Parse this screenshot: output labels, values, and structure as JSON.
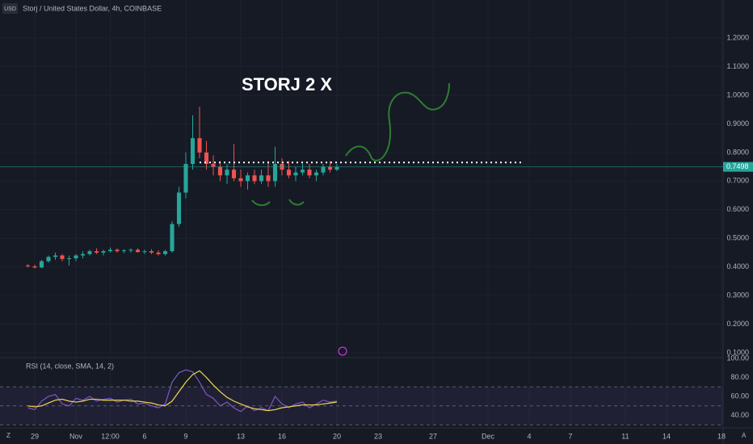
{
  "chart_data": [
    {
      "type": "candlestick",
      "title": "Storj / United States Dollar, 4h, COINBASE",
      "currency": "USD",
      "annotation": "STORJ 2 X",
      "x": [
        -0.5,
        0,
        0.5,
        1,
        1.5,
        2,
        2.5,
        3,
        3.5,
        4,
        4.5,
        5,
        5.5,
        6,
        6.5,
        7,
        7.5,
        8,
        8.5,
        9,
        9.5,
        10,
        10.5,
        11,
        11.5,
        12,
        12.5,
        13,
        13.5,
        14,
        14.5,
        15,
        15.5,
        16,
        16.5,
        17,
        17.5,
        18,
        18.5,
        19,
        19.5,
        20,
        20.5,
        21,
        21.5,
        22
      ],
      "open": [
        0.405,
        0.402,
        0.398,
        0.42,
        0.435,
        0.44,
        0.428,
        0.43,
        0.44,
        0.445,
        0.455,
        0.45,
        0.455,
        0.46,
        0.455,
        0.458,
        0.46,
        0.452,
        0.455,
        0.45,
        0.445,
        0.455,
        0.55,
        0.66,
        0.76,
        0.85,
        0.8,
        0.76,
        0.75,
        0.72,
        0.74,
        0.71,
        0.7,
        0.72,
        0.7,
        0.72,
        0.7,
        0.76,
        0.74,
        0.72,
        0.73,
        0.74,
        0.72,
        0.73,
        0.75,
        0.74
      ],
      "high": [
        0.41,
        0.408,
        0.425,
        0.44,
        0.45,
        0.445,
        0.44,
        0.445,
        0.455,
        0.46,
        0.465,
        0.46,
        0.468,
        0.465,
        0.462,
        0.465,
        0.465,
        0.46,
        0.462,
        0.458,
        0.46,
        0.56,
        0.68,
        0.8,
        0.93,
        0.96,
        0.84,
        0.79,
        0.77,
        0.76,
        0.83,
        0.74,
        0.73,
        0.74,
        0.74,
        0.77,
        0.82,
        0.78,
        0.77,
        0.75,
        0.76,
        0.76,
        0.74,
        0.76,
        0.77,
        0.76
      ],
      "low": [
        0.398,
        0.395,
        0.396,
        0.415,
        0.425,
        0.42,
        0.405,
        0.42,
        0.43,
        0.44,
        0.445,
        0.44,
        0.45,
        0.45,
        0.448,
        0.45,
        0.45,
        0.445,
        0.445,
        0.44,
        0.44,
        0.45,
        0.54,
        0.64,
        0.74,
        0.78,
        0.74,
        0.72,
        0.7,
        0.69,
        0.7,
        0.68,
        0.67,
        0.69,
        0.69,
        0.68,
        0.68,
        0.72,
        0.71,
        0.7,
        0.72,
        0.71,
        0.7,
        0.72,
        0.73,
        0.735
      ],
      "close": [
        0.402,
        0.398,
        0.42,
        0.435,
        0.44,
        0.428,
        0.43,
        0.44,
        0.445,
        0.455,
        0.45,
        0.455,
        0.46,
        0.455,
        0.458,
        0.46,
        0.452,
        0.455,
        0.45,
        0.445,
        0.455,
        0.55,
        0.66,
        0.76,
        0.85,
        0.8,
        0.76,
        0.75,
        0.72,
        0.74,
        0.71,
        0.7,
        0.72,
        0.7,
        0.72,
        0.7,
        0.76,
        0.74,
        0.72,
        0.73,
        0.74,
        0.72,
        0.73,
        0.75,
        0.74,
        0.7498
      ],
      "up_color": "#26a69a",
      "down_color": "#ef5350",
      "last_price": 0.7498,
      "level": {
        "value": 0.765,
        "from": 12,
        "to": 35.5
      },
      "xlim": [
        -2.53,
        50.12
      ],
      "xticks": [
        {
          "value": 0,
          "label": "29"
        },
        {
          "value": 3,
          "label": "Nov"
        },
        {
          "value": 5.5,
          "label": "12:00"
        },
        {
          "value": 8,
          "label": "6"
        },
        {
          "value": 11,
          "label": "9"
        },
        {
          "value": 15,
          "label": "13"
        },
        {
          "value": 18,
          "label": "16"
        },
        {
          "value": 22,
          "label": "20"
        },
        {
          "value": 25,
          "label": "23"
        },
        {
          "value": 29,
          "label": "27"
        },
        {
          "value": 33,
          "label": "Dec"
        },
        {
          "value": 36,
          "label": "4"
        },
        {
          "value": 39,
          "label": "7"
        },
        {
          "value": 43,
          "label": "11"
        },
        {
          "value": 46,
          "label": "14"
        },
        {
          "value": 50,
          "label": "18"
        }
      ],
      "ylim": [
        0.083,
        1.333
      ],
      "yticks": [
        {
          "value": 0.1,
          "label": "0.1000"
        },
        {
          "value": 0.2,
          "label": "0.2000"
        },
        {
          "value": 0.3,
          "label": "0.3000"
        },
        {
          "value": 0.4,
          "label": "0.4000"
        },
        {
          "value": 0.5,
          "label": "0.5000"
        },
        {
          "value": 0.6,
          "label": "0.6000"
        },
        {
          "value": 0.7,
          "label": "0.7000"
        },
        {
          "value": 0.8,
          "label": "0.8000"
        },
        {
          "value": 0.9,
          "label": "0.9000"
        },
        {
          "value": 1.0,
          "label": "1.0000"
        },
        {
          "value": 1.1,
          "label": "1.1000"
        },
        {
          "value": 1.2,
          "label": "1.2000"
        }
      ]
    },
    {
      "type": "line",
      "title": "RSI (14, close, SMA, 14, 2)",
      "x": [
        -0.5,
        0,
        0.5,
        1,
        1.5,
        2,
        2.5,
        3,
        3.5,
        4,
        4.5,
        5,
        5.5,
        6,
        6.5,
        7,
        7.5,
        8,
        8.5,
        9,
        9.5,
        10,
        10.5,
        11,
        11.5,
        12,
        12.5,
        13,
        13.5,
        14,
        14.5,
        15,
        15.5,
        16,
        16.5,
        17,
        17.5,
        18,
        18.5,
        19,
        19.5,
        20,
        20.5,
        21,
        21.5,
        22
      ],
      "series": [
        {
          "color": "#7e57c2",
          "values": [
            48,
            46,
            55,
            60,
            62,
            52,
            50,
            58,
            56,
            60,
            55,
            57,
            58,
            54,
            56,
            57,
            52,
            53,
            50,
            48,
            52,
            75,
            85,
            88,
            86,
            75,
            62,
            58,
            50,
            54,
            48,
            44,
            50,
            45,
            48,
            45,
            60,
            52,
            48,
            52,
            54,
            48,
            52,
            56,
            54,
            55
          ]
        },
        {
          "color": "#f0d64a",
          "values": [
            50,
            49,
            50,
            53,
            56,
            57,
            55,
            54,
            55,
            57,
            57,
            56,
            56,
            56,
            56,
            55,
            55,
            54,
            53,
            51,
            50,
            55,
            65,
            75,
            83,
            87,
            80,
            72,
            65,
            59,
            55,
            52,
            49,
            47,
            46,
            45,
            46,
            48,
            49,
            50,
            51,
            51,
            51,
            52,
            53,
            54
          ]
        }
      ],
      "bands": [
        30,
        50,
        70
      ],
      "ylim": [
        26.8,
        100.9
      ],
      "yticks": [
        {
          "value": 40,
          "label": "40.00"
        },
        {
          "value": 60,
          "label": "60.00"
        },
        {
          "value": 80,
          "label": "80.00"
        },
        {
          "value": 100,
          "label": "100.00"
        }
      ]
    }
  ]
}
